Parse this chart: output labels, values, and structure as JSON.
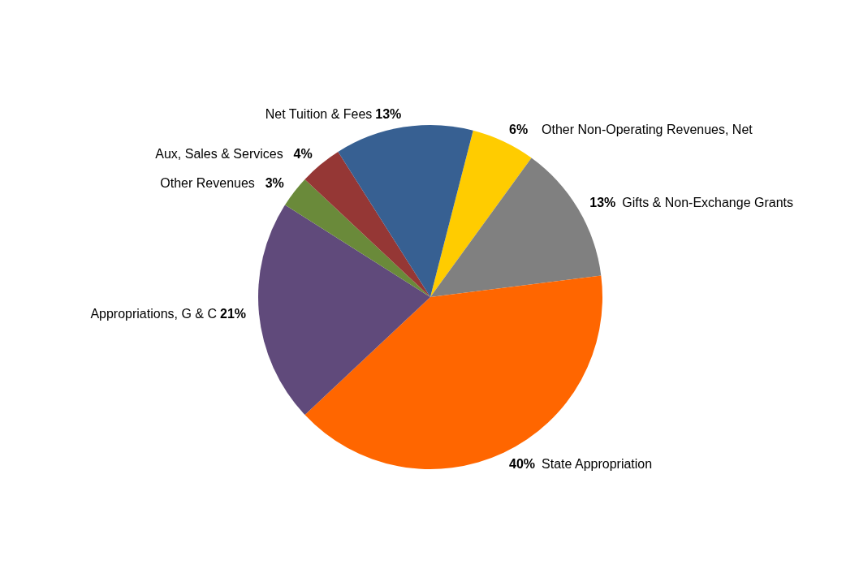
{
  "chart_data": {
    "type": "pie",
    "categories": [
      "Other Non-Operating Revenues, Net",
      "Gifts & Non-Exchange Grants",
      "State Appropriation",
      "Appropriations, G & C",
      "Other Revenues",
      "Aux, Sales & Services",
      "Net Tuition & Fees"
    ],
    "values": [
      6,
      13,
      40,
      21,
      3,
      4,
      13
    ],
    "colors": [
      "#ffcc00",
      "#808080",
      "#ff6600",
      "#604a7b",
      "#6a8a3a",
      "#953735",
      "#376092"
    ],
    "value_labels": [
      "6%",
      "13%",
      "40%",
      "21%",
      "3%",
      "4%",
      "13%"
    ]
  }
}
